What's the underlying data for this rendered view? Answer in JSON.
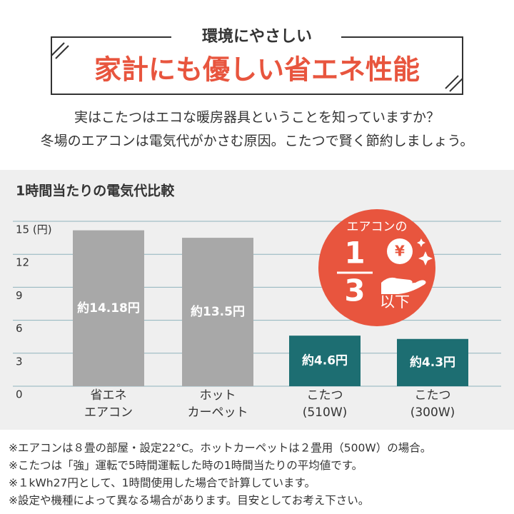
{
  "header": {
    "tagline": "環境にやさしい",
    "headline": "家計にも優しい省エネ性能"
  },
  "intro": [
    "実はこたつはエコな暖房器具ということを知っていますか？",
    "冬場のエアコンは電気代がかさむ原因。こたつで賢く節約しましょう。"
  ],
  "chart_data": {
    "type": "bar",
    "title": "1時間当たりの電気代比較",
    "categories": [
      [
        "省エネ",
        "エアコン"
      ],
      [
        "ホット",
        "カーペット"
      ],
      [
        "こたつ",
        "(510W)"
      ],
      [
        "こたつ",
        "(300W)"
      ]
    ],
    "values": [
      14.18,
      13.5,
      4.6,
      4.3
    ],
    "value_labels": [
      "約14.18円",
      "約13.5円",
      "約4.6円",
      "約4.3円"
    ],
    "colors": [
      "#a8a8a8",
      "#a8a8a8",
      "#1d6e72",
      "#1d6e72"
    ],
    "ylim": [
      0,
      15
    ],
    "yticks": [
      0,
      3,
      6,
      9,
      12,
      {
        "value": 15,
        "label": "15 (円)"
      }
    ],
    "grid": true,
    "annotation": {
      "heading": "エアコンの",
      "numerator": "1",
      "denominator": "3",
      "suffix": "以下",
      "icon": "¥"
    }
  },
  "footnotes": [
    "※エアコンは８畳の部屋・設定22°C。ホットカーペットは２畳用（500W）の場合。",
    "※こたつは「強」運転で5時間運転した時の1時間当たりの平均値です。",
    "※１kWh27円として、1時間使用した場合で計算しています。",
    "※設定や機種によって異なる場合があります。目安としてお考え下さい。"
  ]
}
